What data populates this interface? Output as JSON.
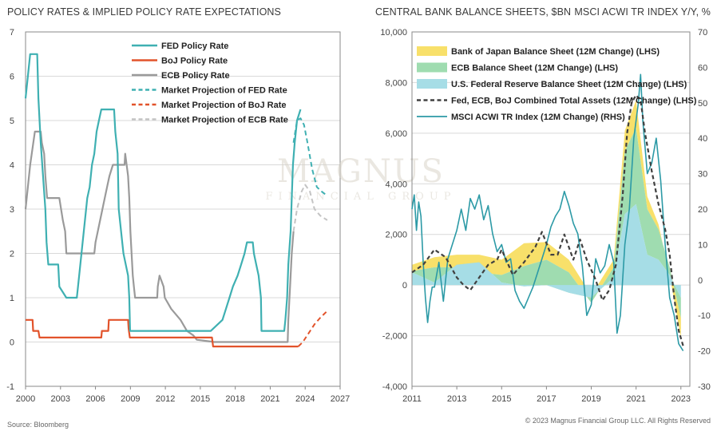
{
  "source_note": "Source: Bloomberg",
  "copyright_note": "© 2023 Magnus Financial Group LLC. All Rights Reserved",
  "watermark": {
    "brand": "MAGNUS",
    "sub": "FINANCIAL GROUP"
  },
  "colors": {
    "fed": "#3fb0b2",
    "boj": "#e2532b",
    "ecb": "#9a9a9a",
    "boj_bs": "#f8e06a",
    "ecb_bs": "#9fdcb0",
    "fed_bs": "#a6dde6",
    "combined": "#404040",
    "msci": "#2c9aa6",
    "grid": "#d9d9d9",
    "axis": "#888888"
  },
  "chart_data": [
    {
      "type": "line",
      "title": "POLICY RATES & IMPLIED POLICY RATE EXPECTATIONS",
      "xlabel": "",
      "ylabel": "",
      "xlim": [
        2000,
        2027
      ],
      "ylim": [
        -1,
        7
      ],
      "x_ticks": [
        2000,
        2003,
        2006,
        2009,
        2012,
        2015,
        2018,
        2021,
        2024,
        2027
      ],
      "y_ticks": [
        -1,
        0,
        1,
        2,
        3,
        4,
        5,
        6,
        7
      ],
      "grid": true,
      "legend_position": "top-right",
      "series": [
        {
          "name": "FED Policy Rate",
          "style": "solid",
          "color": "#3fb0b2",
          "points": [
            [
              2000.0,
              5.5
            ],
            [
              2000.2,
              6.0
            ],
            [
              2000.4,
              6.5
            ],
            [
              2001.0,
              6.5
            ],
            [
              2001.1,
              5.5
            ],
            [
              2001.3,
              4.5
            ],
            [
              2001.5,
              3.75
            ],
            [
              2001.7,
              3.0
            ],
            [
              2001.8,
              2.25
            ],
            [
              2001.95,
              1.75
            ],
            [
              2002.8,
              1.75
            ],
            [
              2002.9,
              1.25
            ],
            [
              2003.5,
              1.0
            ],
            [
              2004.4,
              1.0
            ],
            [
              2004.5,
              1.25
            ],
            [
              2004.7,
              1.75
            ],
            [
              2004.9,
              2.25
            ],
            [
              2005.1,
              2.75
            ],
            [
              2005.3,
              3.25
            ],
            [
              2005.5,
              3.5
            ],
            [
              2005.7,
              4.0
            ],
            [
              2005.9,
              4.25
            ],
            [
              2006.1,
              4.75
            ],
            [
              2006.3,
              5.0
            ],
            [
              2006.5,
              5.25
            ],
            [
              2007.6,
              5.25
            ],
            [
              2007.7,
              4.75
            ],
            [
              2007.9,
              4.25
            ],
            [
              2008.0,
              3.0
            ],
            [
              2008.3,
              2.25
            ],
            [
              2008.4,
              2.0
            ],
            [
              2008.8,
              1.5
            ],
            [
              2008.9,
              1.0
            ],
            [
              2008.97,
              0.25
            ],
            [
              2015.9,
              0.25
            ],
            [
              2016.9,
              0.5
            ],
            [
              2017.2,
              0.75
            ],
            [
              2017.5,
              1.0
            ],
            [
              2017.8,
              1.25
            ],
            [
              2018.2,
              1.5
            ],
            [
              2018.5,
              1.75
            ],
            [
              2018.8,
              2.0
            ],
            [
              2019.0,
              2.25
            ],
            [
              2019.5,
              2.25
            ],
            [
              2019.6,
              2.0
            ],
            [
              2019.8,
              1.75
            ],
            [
              2020.0,
              1.5
            ],
            [
              2020.2,
              1.0
            ],
            [
              2020.25,
              0.25
            ],
            [
              2022.2,
              0.25
            ],
            [
              2022.3,
              0.5
            ],
            [
              2022.45,
              1.0
            ],
            [
              2022.55,
              1.75
            ],
            [
              2022.75,
              2.5
            ],
            [
              2022.85,
              3.25
            ],
            [
              2022.95,
              4.0
            ],
            [
              2023.1,
              4.5
            ],
            [
              2023.3,
              5.0
            ],
            [
              2023.6,
              5.25
            ]
          ]
        },
        {
          "name": "BoJ Policy Rate",
          "style": "solid",
          "color": "#e2532b",
          "points": [
            [
              2000.0,
              0.5
            ],
            [
              2000.6,
              0.5
            ],
            [
              2000.65,
              0.25
            ],
            [
              2001.1,
              0.25
            ],
            [
              2001.2,
              0.1
            ],
            [
              2006.5,
              0.1
            ],
            [
              2006.55,
              0.25
            ],
            [
              2007.1,
              0.25
            ],
            [
              2007.15,
              0.5
            ],
            [
              2008.8,
              0.5
            ],
            [
              2008.85,
              0.3
            ],
            [
              2008.95,
              0.1
            ],
            [
              2016.0,
              0.1
            ],
            [
              2016.1,
              -0.1
            ],
            [
              2023.4,
              -0.1
            ]
          ]
        },
        {
          "name": "ECB Policy Rate",
          "style": "solid",
          "color": "#9a9a9a",
          "points": [
            [
              2000.0,
              3.0
            ],
            [
              2000.2,
              3.5
            ],
            [
              2000.4,
              4.0
            ],
            [
              2000.8,
              4.75
            ],
            [
              2001.3,
              4.75
            ],
            [
              2001.4,
              4.5
            ],
            [
              2001.6,
              4.25
            ],
            [
              2001.7,
              3.75
            ],
            [
              2001.85,
              3.25
            ],
            [
              2002.9,
              3.25
            ],
            [
              2003.2,
              2.75
            ],
            [
              2003.4,
              2.5
            ],
            [
              2003.5,
              2.0
            ],
            [
              2005.9,
              2.0
            ],
            [
              2006.0,
              2.25
            ],
            [
              2006.2,
              2.5
            ],
            [
              2006.4,
              2.75
            ],
            [
              2006.6,
              3.0
            ],
            [
              2006.8,
              3.25
            ],
            [
              2007.0,
              3.5
            ],
            [
              2007.2,
              3.75
            ],
            [
              2007.5,
              4.0
            ],
            [
              2008.5,
              4.0
            ],
            [
              2008.55,
              4.25
            ],
            [
              2008.8,
              3.75
            ],
            [
              2008.9,
              3.25
            ],
            [
              2009.0,
              2.5
            ],
            [
              2009.1,
              2.0
            ],
            [
              2009.2,
              1.5
            ],
            [
              2009.3,
              1.25
            ],
            [
              2009.4,
              1.0
            ],
            [
              2011.3,
              1.0
            ],
            [
              2011.35,
              1.25
            ],
            [
              2011.5,
              1.5
            ],
            [
              2011.85,
              1.25
            ],
            [
              2011.95,
              1.0
            ],
            [
              2012.5,
              0.75
            ],
            [
              2013.3,
              0.5
            ],
            [
              2013.85,
              0.25
            ],
            [
              2014.4,
              0.15
            ],
            [
              2014.7,
              0.05
            ],
            [
              2016.2,
              0.0
            ],
            [
              2022.5,
              0.0
            ],
            [
              2022.55,
              0.5
            ],
            [
              2022.7,
              1.25
            ],
            [
              2022.85,
              2.0
            ],
            [
              2023.0,
              2.5
            ]
          ]
        },
        {
          "name": "Market Projection of FED Rate",
          "style": "dashed",
          "color": "#3fb0b2",
          "points": [
            [
              2023.0,
              4.5
            ],
            [
              2023.3,
              5.0
            ],
            [
              2023.6,
              5.05
            ],
            [
              2023.9,
              4.9
            ],
            [
              2024.2,
              4.5
            ],
            [
              2024.6,
              3.9
            ],
            [
              2025.0,
              3.5
            ],
            [
              2025.4,
              3.4
            ],
            [
              2025.9,
              3.3
            ]
          ]
        },
        {
          "name": "Market Projection of BoJ Rate",
          "style": "dashed",
          "color": "#e2532b",
          "points": [
            [
              2023.4,
              -0.1
            ],
            [
              2023.8,
              0.0
            ],
            [
              2024.3,
              0.2
            ],
            [
              2024.8,
              0.4
            ],
            [
              2025.3,
              0.55
            ],
            [
              2025.9,
              0.7
            ]
          ]
        },
        {
          "name": "Market Projection of ECB Rate",
          "style": "dashed",
          "color": "#c4c4c4",
          "points": [
            [
              2023.0,
              2.5
            ],
            [
              2023.3,
              3.0
            ],
            [
              2023.7,
              3.4
            ],
            [
              2024.0,
              3.55
            ],
            [
              2024.4,
              3.4
            ],
            [
              2024.8,
              3.0
            ],
            [
              2025.3,
              2.85
            ],
            [
              2025.9,
              2.75
            ]
          ]
        }
      ]
    },
    {
      "type": "area",
      "title": "CENTRAL BANK BALANCE SHEETS, $BN",
      "right_title": "MSCI ACWI TR INDEX Y/Y, %",
      "xlabel": "",
      "ylabel": "",
      "xlim": [
        2011,
        2023.4
      ],
      "ylim": [
        -4000,
        10000
      ],
      "y2lim": [
        -30,
        70
      ],
      "x_ticks": [
        2011,
        2013,
        2015,
        2017,
        2019,
        2021,
        2023
      ],
      "y_ticks": [
        -4000,
        -2000,
        0,
        2000,
        4000,
        6000,
        8000,
        10000
      ],
      "y2_ticks": [
        -30,
        -20,
        -10,
        0,
        10,
        20,
        30,
        40,
        50,
        60,
        70
      ],
      "grid": true,
      "legend_position": "top-left",
      "series": [
        {
          "name": "Bank of Japan Balance Sheet (12M Change) (LHS)",
          "kind": "stacked-area",
          "color": "#f8e06a",
          "x": [
            2011.0,
            2012.0,
            2013.0,
            2014.0,
            2015.0,
            2016.0,
            2017.0,
            2018.0,
            2019.0,
            2020.0,
            2020.5,
            2021.0,
            2021.5,
            2022.0,
            2022.5,
            2023.0
          ],
          "values": [
            250,
            400,
            500,
            700,
            600,
            900,
            700,
            500,
            300,
            300,
            800,
            1100,
            500,
            200,
            -300,
            -800
          ]
        },
        {
          "name": "ECB Balance Sheet (12M Change) (LHS)",
          "kind": "stacked-area",
          "color": "#9fdcb0",
          "x": [
            2011.0,
            2012.0,
            2013.0,
            2014.0,
            2015.0,
            2016.0,
            2017.0,
            2018.0,
            2019.0,
            2020.0,
            2020.5,
            2021.0,
            2021.5,
            2022.0,
            2022.5,
            2023.0
          ],
          "values": [
            50,
            600,
            -100,
            -400,
            300,
            800,
            1000,
            800,
            -200,
            400,
            2500,
            3000,
            1800,
            1200,
            300,
            -800
          ]
        },
        {
          "name": "U.S. Federal Reserve Balance Sheet (12M Change) (LHS)",
          "kind": "stacked-area",
          "color": "#a6dde6",
          "x": [
            2011.0,
            2012.0,
            2013.0,
            2014.0,
            2015.0,
            2016.0,
            2017.0,
            2018.0,
            2019.0,
            2020.0,
            2020.5,
            2021.0,
            2021.5,
            2022.0,
            2022.5,
            2023.0
          ],
          "values": [
            500,
            100,
            800,
            900,
            100,
            -50,
            0,
            -300,
            -500,
            300,
            2800,
            3200,
            1200,
            1000,
            400,
            -500
          ]
        },
        {
          "name": "Fed, ECB, BoJ Combined Total Assets (12M Change) (LHS)",
          "kind": "dashed-line",
          "color": "#404040",
          "x": [
            2011.0,
            2011.5,
            2012.0,
            2012.5,
            2013.0,
            2013.3,
            2013.6,
            2014.0,
            2014.4,
            2014.8,
            2015.0,
            2015.5,
            2016.0,
            2016.5,
            2016.8,
            2017.2,
            2017.5,
            2017.8,
            2018.2,
            2018.5,
            2018.8,
            2019.2,
            2019.5,
            2019.8,
            2020.1,
            2020.4,
            2020.6,
            2020.8,
            2021.0,
            2021.2,
            2021.4,
            2021.7,
            2022.0,
            2022.3,
            2022.5,
            2022.7,
            2022.9,
            2023.1
          ],
          "values": [
            500,
            800,
            1400,
            1100,
            300,
            0,
            -200,
            300,
            800,
            1000,
            1400,
            400,
            900,
            1500,
            2100,
            1200,
            1200,
            2000,
            1000,
            1800,
            1000,
            200,
            -600,
            -200,
            800,
            3500,
            6000,
            7200,
            7500,
            7300,
            6000,
            4500,
            3200,
            2200,
            1200,
            -500,
            -1800,
            -2400
          ]
        },
        {
          "name": "MSCI ACWI TR Index (12M Change) (RHS)",
          "kind": "line",
          "axis": "right",
          "color": "#2c9aa6",
          "x": [
            2011.0,
            2011.1,
            2011.2,
            2011.3,
            2011.4,
            2011.5,
            2011.6,
            2011.7,
            2011.8,
            2011.9,
            2012.0,
            2012.2,
            2012.4,
            2012.6,
            2012.8,
            2013.0,
            2013.2,
            2013.4,
            2013.6,
            2013.8,
            2014.0,
            2014.2,
            2014.4,
            2014.6,
            2014.8,
            2015.0,
            2015.2,
            2015.4,
            2015.6,
            2015.8,
            2016.0,
            2016.2,
            2016.4,
            2016.6,
            2016.8,
            2017.0,
            2017.2,
            2017.4,
            2017.6,
            2017.8,
            2018.0,
            2018.2,
            2018.4,
            2018.6,
            2018.8,
            2019.0,
            2019.2,
            2019.4,
            2019.6,
            2019.8,
            2020.0,
            2020.15,
            2020.3,
            2020.5,
            2020.7,
            2020.9,
            2021.1,
            2021.2,
            2021.3,
            2021.5,
            2021.7,
            2021.9,
            2022.1,
            2022.3,
            2022.5,
            2022.7,
            2022.9,
            2023.1
          ],
          "values": [
            20,
            24,
            14,
            22,
            18,
            5,
            -5,
            -12,
            -6,
            -2,
            -2,
            5,
            -6,
            6,
            10,
            14,
            20,
            14,
            23,
            20,
            24,
            17,
            21,
            13,
            8,
            10,
            5,
            6,
            -3,
            -6,
            -8,
            -5,
            -2,
            2,
            6,
            10,
            15,
            18,
            20,
            25,
            21,
            16,
            13,
            4,
            -10,
            -7,
            6,
            2,
            4,
            10,
            5,
            -15,
            -10,
            10,
            20,
            40,
            50,
            58,
            45,
            30,
            33,
            40,
            28,
            10,
            -5,
            -10,
            -18,
            -20
          ]
        }
      ]
    }
  ]
}
